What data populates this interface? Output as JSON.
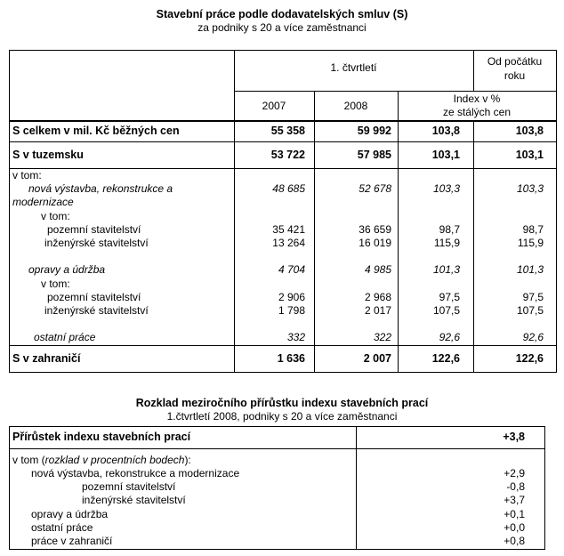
{
  "table1": {
    "title": "Stavební práce podle dodavatelských smluv (S)",
    "subtitle": "za podniky s 20 a více zaměstnanci",
    "header": {
      "quarter": "1. čtvrtletí",
      "ytd_line1": "Od počátku",
      "ytd_line2": "roku",
      "y2007": "2007",
      "y2008": "2008",
      "index_line1": "Index v %",
      "index_line2": "ze stálých cen"
    },
    "total": {
      "label": "S celkem v mil. Kč běžných cen",
      "v2007": "55 358",
      "v2008": "59 992",
      "index": "103,8",
      "ytd": "103,8"
    },
    "domestic": {
      "label": "S v tuzemsku",
      "v2007": "53 722",
      "v2008": "57 985",
      "index": "103,1",
      "ytd": "103,1"
    },
    "rows": [
      {
        "label": "v tom:",
        "level": 0,
        "italic": false
      },
      {
        "label": "nová výstavba, rekonstrukce a",
        "level": 1,
        "italic": true,
        "v2007": "48 685",
        "v2008": "52 678",
        "index": "103,3",
        "ytd": "103,3"
      },
      {
        "label": "modernizace",
        "level": 0,
        "italic": true
      },
      {
        "label": "v tom:",
        "level": 2,
        "italic": false
      },
      {
        "label": "pozemní stavitelství",
        "level": 3,
        "italic": false,
        "v2007": "35 421",
        "v2008": "36 659",
        "index": "98,7",
        "ytd": "98,7"
      },
      {
        "label": "inženýrské stavitelství",
        "level": 4,
        "italic": false,
        "v2007": "13 264",
        "v2008": "16 019",
        "index": "115,9",
        "ytd": "115,9"
      },
      {
        "label": "",
        "level": 0,
        "italic": false
      },
      {
        "label": "opravy a údržba",
        "level": 1,
        "italic": true,
        "v2007": "4 704",
        "v2008": "4 985",
        "index": "101,3",
        "ytd": "101,3"
      },
      {
        "label": "v tom:",
        "level": 2,
        "italic": false
      },
      {
        "label": "pozemní stavitelství",
        "level": 3,
        "italic": false,
        "v2007": "2 906",
        "v2008": "2 968",
        "index": "97,5",
        "ytd": "97,5"
      },
      {
        "label": "inženýrské stavitelství",
        "level": 4,
        "italic": false,
        "v2007": "1 798",
        "v2008": "2 017",
        "index": "107,5",
        "ytd": "107,5"
      },
      {
        "label": "",
        "level": 0,
        "italic": false
      },
      {
        "label": "ostatní práce",
        "level": 5,
        "italic": true,
        "v2007": "332",
        "v2008": "322",
        "index": "92,6",
        "ytd": "92,6"
      }
    ],
    "foreign": {
      "label": "S v zahraničí",
      "v2007": "1 636",
      "v2008": "2 007",
      "index": "122,6",
      "ytd": "122,6"
    }
  },
  "table2": {
    "title": "Rozklad meziročního přírůstku indexu stavebních prací",
    "subtitle": "1.čtvrtletí 2008, podniky s 20 a více zaměstnanci",
    "header": {
      "label": "Přírůstek indexu stavebních prací",
      "value": "+3,8"
    },
    "intro_prefix": "v tom (",
    "intro_italic": "rozklad v procentních bodech",
    "intro_suffix": "):",
    "rows": [
      {
        "label": "nová výstavba, rekonstrukce a modernizace",
        "level": 1,
        "value": "+2,9"
      },
      {
        "label": "pozemní stavitelství",
        "level": 2,
        "value": "-0,8"
      },
      {
        "label": "inženýrské stavitelství",
        "level": 2,
        "value": "+3,7"
      },
      {
        "label": "opravy a údržba",
        "level": 1,
        "value": "+0,1"
      },
      {
        "label": "ostatní práce",
        "level": 1,
        "value": "+0,0"
      },
      {
        "label": "práce v zahraničí",
        "level": 1,
        "value": "+0,8"
      }
    ]
  }
}
